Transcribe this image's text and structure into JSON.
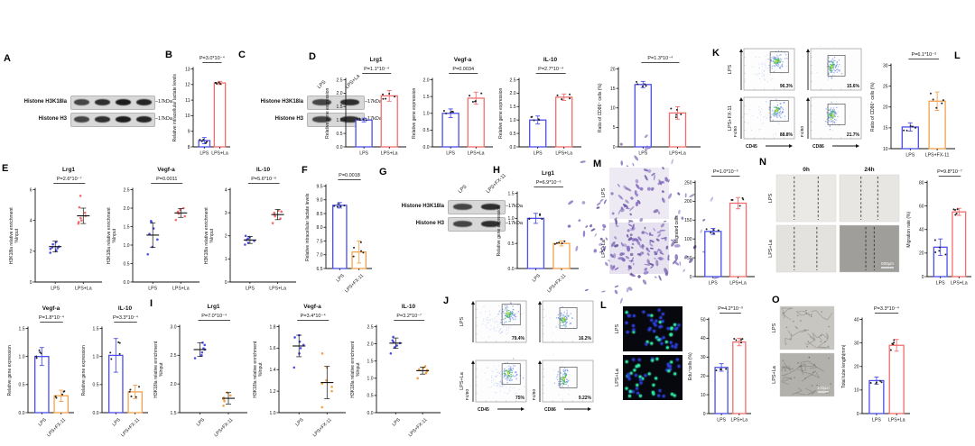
{
  "panel_labels": {
    "A": "A",
    "B": "B",
    "C": "C",
    "D": "D",
    "E": "E",
    "F": "F",
    "G": "G",
    "H": "H",
    "I": "I",
    "J": "J",
    "K": "K",
    "L1": "L",
    "M": "M",
    "N": "N",
    "L2": "L",
    "O": "O"
  },
  "colors": {
    "blue": "#4b4fe8",
    "red": "#f26d6d",
    "orange": "#f2a24e",
    "dot": "#222222"
  },
  "blots": {
    "A": {
      "lanes": 4,
      "lane_labels": [],
      "rows": [
        {
          "name": "Histone H3K18la",
          "size": "17kDa"
        },
        {
          "name": "Histone H3",
          "size": "17kDa"
        }
      ]
    },
    "C": {
      "lanes": 2,
      "lane_labels": [
        "LPS",
        "LPS+La"
      ],
      "rows": [
        {
          "name": "Histone H3K18la",
          "size": "17kDa"
        },
        {
          "name": "Histone H3",
          "size": "17kDa"
        }
      ]
    },
    "G": {
      "lanes": 2,
      "lane_labels": [
        "LPS",
        "LPS+FX-11"
      ],
      "rows": [
        {
          "name": "Histone H3K18la",
          "size": "17kDa"
        },
        {
          "name": "Histone H3",
          "size": "17kDa"
        }
      ]
    }
  },
  "images": {
    "M": {
      "type": "transwell",
      "row_labels": [
        "LPS",
        "LPS+La"
      ]
    },
    "N": {
      "type": "wound",
      "row_labels": [
        "LPS",
        "LPS+La"
      ],
      "col_labels": [
        "0h",
        "24h"
      ],
      "scale_label": "500μm"
    },
    "L2": {
      "type": "edu",
      "row_labels": [
        "LPS",
        "LPS+La"
      ]
    },
    "O": {
      "type": "tube",
      "row_labels": [
        "LPS",
        "LPS+La"
      ],
      "scale_label": "200μm"
    }
  },
  "chart_data": [
    {
      "id": "B-lactate",
      "type": "bar",
      "p": "P=3.0*10⁻⁴",
      "ylabel": "Relative intracellular lactate levels",
      "categories": [
        "LPS",
        "LPS+La"
      ],
      "values": [
        8.4,
        12.1
      ],
      "errors": [
        0.2,
        0.1
      ],
      "ylim": [
        8,
        13
      ],
      "yticks": [
        8,
        9,
        10,
        11,
        12,
        13
      ],
      "colors": [
        "blue",
        "red"
      ],
      "rotate_x": false
    },
    {
      "id": "D-Lrg1",
      "type": "bar",
      "title": "Lrg1",
      "p": "P=1.1*10⁻⁴",
      "ylabel": "Relative gene expression",
      "categories": [
        "LPS",
        "LPS+La"
      ],
      "values": [
        1.0,
        1.9
      ],
      "errors": [
        0.07,
        0.2
      ],
      "ylim": [
        0,
        2.5
      ],
      "yticks": [
        0,
        0.5,
        1,
        1.5,
        2,
        2.5
      ],
      "colors": [
        "blue",
        "red"
      ],
      "rotate_x": false
    },
    {
      "id": "D-Vegfa",
      "type": "bar",
      "title": "Vegf-a",
      "p": "P=0.0034",
      "ylabel": "Relative gene expression",
      "categories": [
        "LPS",
        "LPS+La"
      ],
      "values": [
        1.0,
        1.45
      ],
      "errors": [
        0.13,
        0.18
      ],
      "ylim": [
        0,
        2
      ],
      "yticks": [
        0,
        0.5,
        1,
        1.5,
        2
      ],
      "colors": [
        "blue",
        "red"
      ],
      "rotate_x": false
    },
    {
      "id": "D-IL10",
      "type": "bar",
      "title": "IL-10",
      "p": "P=2.7*10⁻⁴",
      "ylabel": "Relative gene expression",
      "categories": [
        "LPS",
        "LPS+La"
      ],
      "values": [
        1.0,
        1.85
      ],
      "errors": [
        0.15,
        0.12
      ],
      "ylim": [
        0,
        2.5
      ],
      "yticks": [
        0,
        0.5,
        1,
        1.5,
        2,
        2.5
      ],
      "colors": [
        "blue",
        "red"
      ],
      "rotate_x": false
    },
    {
      "id": "CD86-La",
      "type": "bar",
      "p": "P=1.3*10⁻⁴",
      "ylabel": "Ratio of CD86⁺ cells (%)",
      "categories": [
        "LPS",
        "LPS+La"
      ],
      "values": [
        16,
        8.7
      ],
      "errors": [
        0.8,
        1.6
      ],
      "ylim": [
        0,
        20
      ],
      "yticks": [
        0,
        5,
        10,
        15,
        20
      ],
      "colors": [
        "blue",
        "red"
      ],
      "rotate_x": false
    },
    {
      "id": "CD86-FX11",
      "type": "bar",
      "p": "P=6.1*10⁻³",
      "ylabel": "Ratio of CD86⁺ cells (%)",
      "categories": [
        "LPS",
        "LPS+FX-11"
      ],
      "values": [
        15.2,
        21.4
      ],
      "errors": [
        1.0,
        2.2
      ],
      "ylim": [
        10,
        30
      ],
      "yticks": [
        10,
        15,
        20,
        25,
        30
      ],
      "colors": [
        "blue",
        "orange"
      ],
      "rotate_x": false
    },
    {
      "id": "E-Lrg1",
      "type": "dot",
      "title": "Lrg1",
      "p": "P=2.6*10⁻⁷",
      "ylabel": "H3K18la relative enrichment",
      "ylabel2": "%Input",
      "categories": [
        "LPS",
        "LPS+La"
      ],
      "values": [
        2.3,
        4.3
      ],
      "errors": [
        0.35,
        0.5
      ],
      "points": [
        [
          1.9,
          2.05,
          2.15,
          2.25,
          2.3,
          2.45,
          2.6,
          2.2
        ],
        [
          3.8,
          3.9,
          4.0,
          4.15,
          4.3,
          4.5,
          4.85,
          5.6
        ]
      ],
      "ylim": [
        0,
        6
      ],
      "yticks": [
        0,
        2,
        4,
        6
      ],
      "colors": [
        "blue",
        "red"
      ],
      "rotate_x": false
    },
    {
      "id": "E-Vegfa",
      "type": "dot",
      "title": "Vegf-a",
      "p": "P=0.0011",
      "ylabel": "H3K18la relative enrichment",
      "ylabel2": "%Input",
      "categories": [
        "LPS",
        "LPS+La"
      ],
      "values": [
        1.27,
        1.87
      ],
      "errors": [
        0.33,
        0.12
      ],
      "points": [
        [
          0.75,
          0.95,
          1.15,
          1.3,
          1.45,
          1.62,
          1.65
        ],
        [
          1.68,
          1.78,
          1.85,
          1.9,
          1.95,
          2.0
        ]
      ],
      "ylim": [
        0,
        2.5
      ],
      "yticks": [
        0,
        0.5,
        1,
        1.5,
        2,
        2.5
      ],
      "colors": [
        "blue",
        "red"
      ],
      "rotate_x": false
    },
    {
      "id": "E-IL10",
      "type": "dot",
      "title": "IL-10",
      "p": "P=5.6*10⁻⁶",
      "ylabel": "H3K18la relative enrichment",
      "ylabel2": "%Input",
      "categories": [
        "LPS",
        "LPS+La"
      ],
      "values": [
        1.82,
        2.92
      ],
      "errors": [
        0.15,
        0.22
      ],
      "points": [
        [
          1.62,
          1.7,
          1.78,
          1.82,
          1.88,
          1.95,
          2.0
        ],
        [
          2.55,
          2.75,
          2.85,
          2.92,
          3.0,
          3.05,
          3.1
        ]
      ],
      "ylim": [
        0,
        4
      ],
      "yticks": [
        0,
        1,
        2,
        3,
        4
      ],
      "colors": [
        "blue",
        "red"
      ],
      "rotate_x": false
    },
    {
      "id": "F-lactate",
      "type": "bar",
      "p": "P=0.0018",
      "ylabel": "Relative intracellular lactate levels",
      "categories": [
        "LPS",
        "LPS+FX-11"
      ],
      "values": [
        8.8,
        7.1
      ],
      "errors": [
        0.1,
        0.4
      ],
      "ylim": [
        6.5,
        9.5
      ],
      "yticks": [
        6.5,
        7,
        7.5,
        8,
        8.5,
        9,
        9.5
      ],
      "colors": [
        "blue",
        "orange"
      ],
      "rotate_x": true
    },
    {
      "id": "H-Lrg1",
      "type": "bar",
      "title": "Lrg1",
      "p": "P=6.9*10⁻⁶",
      "ylabel": "Relative gene expression",
      "categories": [
        "LPS",
        "LPS+FX-11"
      ],
      "values": [
        1.0,
        0.5
      ],
      "errors": [
        0.1,
        0.05
      ],
      "ylim": [
        0,
        1.5
      ],
      "yticks": [
        0,
        0.5,
        1,
        1.5
      ],
      "colors": [
        "blue",
        "orange"
      ],
      "rotate_x": true
    },
    {
      "id": "Vegfa-FX11",
      "type": "bar",
      "title": "Vegf-a",
      "p": "P=1.8*10⁻⁴",
      "ylabel": "Relative gene expression",
      "categories": [
        "LPS",
        "LPS+FX-11"
      ],
      "values": [
        1.0,
        0.3
      ],
      "errors": [
        0.16,
        0.1
      ],
      "ylim": [
        0,
        1.5
      ],
      "yticks": [
        0,
        0.5,
        1,
        1.5
      ],
      "colors": [
        "blue",
        "orange"
      ],
      "rotate_x": true
    },
    {
      "id": "IL10-FX11",
      "type": "bar",
      "title": "IL-10",
      "p": "P=3.3*10⁻⁴",
      "ylabel": "Relative gene expression",
      "categories": [
        "LPS",
        "LPS+FX-11"
      ],
      "values": [
        1.02,
        0.37
      ],
      "errors": [
        0.3,
        0.12
      ],
      "ylim": [
        0,
        1.5
      ],
      "yticks": [
        0,
        0.5,
        1,
        1.5
      ],
      "colors": [
        "blue",
        "orange"
      ],
      "rotate_x": true
    },
    {
      "id": "I-Lrg1",
      "type": "dot",
      "title": "Lrg1",
      "p": "P=7.0*10⁻⁴",
      "ylabel": "H3K18la relative enrichment",
      "ylabel2": "%Input",
      "categories": [
        "LPS",
        "LPS+FX-11"
      ],
      "values": [
        2.6,
        1.75
      ],
      "errors": [
        0.12,
        0.1
      ],
      "points": [
        [
          2.45,
          2.5,
          2.55,
          2.6,
          2.62,
          2.68,
          2.72
        ],
        [
          1.62,
          1.7,
          1.73,
          1.76,
          1.8,
          1.85
        ]
      ],
      "ylim": [
        1.5,
        3
      ],
      "yticks": [
        1.5,
        2,
        2.5,
        3
      ],
      "colors": [
        "blue",
        "orange"
      ],
      "rotate_x": true
    },
    {
      "id": "I-Vegfa",
      "type": "dot",
      "title": "Vegf-a",
      "p": "P=3.4*10⁻⁴",
      "ylabel": "H3K18la relative enrichment",
      "ylabel2": "%Input",
      "categories": [
        "LPS",
        "LPS+FX-11"
      ],
      "values": [
        1.62,
        1.28
      ],
      "errors": [
        0.1,
        0.15
      ],
      "points": [
        [
          1.42,
          1.55,
          1.6,
          1.63,
          1.66,
          1.7,
          1.72
        ],
        [
          1.05,
          1.2,
          1.24,
          1.27,
          1.3,
          1.42,
          1.55
        ]
      ],
      "ylim": [
        1,
        1.8
      ],
      "yticks": [
        1,
        1.2,
        1.4,
        1.6,
        1.8
      ],
      "colors": [
        "blue",
        "orange"
      ],
      "rotate_x": true
    },
    {
      "id": "I-IL10",
      "type": "dot",
      "title": "IL-10",
      "p": "P=3.2*10⁻⁷",
      "ylabel": "H3K18la relative enrichment",
      "ylabel2": "%Input",
      "categories": [
        "LPS",
        "LPS+FX-11"
      ],
      "values": [
        2.02,
        1.22
      ],
      "errors": [
        0.15,
        0.1
      ],
      "points": [
        [
          1.72,
          1.9,
          1.95,
          2.02,
          2.05,
          2.1,
          2.2
        ],
        [
          1.0,
          1.15,
          1.2,
          1.24,
          1.26,
          1.3,
          1.35
        ]
      ],
      "ylim": [
        0,
        2.5
      ],
      "yticks": [
        0,
        0.5,
        1,
        1.5,
        2,
        2.5
      ],
      "colors": [
        "blue",
        "orange"
      ],
      "rotate_x": true
    },
    {
      "id": "M-migrated",
      "type": "bar",
      "p": "P=1.0*10⁻³",
      "ylabel": "Migrated cells",
      "categories": [
        "LPS",
        "LPS+La"
      ],
      "values": [
        120,
        195
      ],
      "errors": [
        8,
        15
      ],
      "ylim": [
        0,
        250
      ],
      "yticks": [
        0,
        50,
        100,
        150,
        200,
        250
      ],
      "colors": [
        "blue",
        "red"
      ],
      "rotate_x": false
    },
    {
      "id": "N-migration-rate",
      "type": "bar",
      "p": "P=9.8*10⁻⁷",
      "ylabel": "Migration rate (%)",
      "categories": [
        "LPS",
        "LPS+La"
      ],
      "values": [
        25,
        55
      ],
      "errors": [
        7,
        3
      ],
      "ylim": [
        0,
        80
      ],
      "yticks": [
        0,
        20,
        40,
        60,
        80
      ],
      "colors": [
        "blue",
        "red"
      ],
      "rotate_x": false
    },
    {
      "id": "L2-Edu",
      "type": "bar",
      "p": "P=4.2*10⁻³",
      "ylabel": "Edu⁺cells (%)",
      "categories": [
        "LPS",
        "LPS+La"
      ],
      "values": [
        24.5,
        38
      ],
      "errors": [
        2,
        2
      ],
      "ylim": [
        0,
        50
      ],
      "yticks": [
        0,
        10,
        20,
        30,
        40,
        50
      ],
      "colors": [
        "blue",
        "red"
      ],
      "rotate_x": false
    },
    {
      "id": "O-tube",
      "type": "bar",
      "p": "P=3.3*10⁻⁴",
      "ylabel": "Total tube length(mm)",
      "categories": [
        "LPS",
        "LPS+La"
      ],
      "values": [
        14,
        29
      ],
      "errors": [
        1.5,
        2.5
      ],
      "ylim": [
        0,
        40
      ],
      "yticks": [
        0,
        10,
        20,
        30,
        40
      ],
      "colors": [
        "blue",
        "red"
      ],
      "rotate_x": false
    },
    {
      "id": "K-flow",
      "type": "flow",
      "row_labels": [
        "LPS",
        "LPS+FX-11"
      ],
      "x_labels": [
        "CD45",
        "CD86"
      ],
      "y_label": "F4/80",
      "percents": [
        [
          "96.3%",
          "15.6%"
        ],
        [
          "88.8%",
          "21.7%"
        ]
      ]
    },
    {
      "id": "J-flow",
      "type": "flow",
      "row_labels": [
        "LPS",
        "LPS+La"
      ],
      "x_labels": [
        "CD45",
        "CD86"
      ],
      "y_label": "F4/80",
      "percents": [
        [
          "79.4%",
          "16.2%"
        ],
        [
          "75%",
          "9.22%"
        ]
      ]
    }
  ]
}
